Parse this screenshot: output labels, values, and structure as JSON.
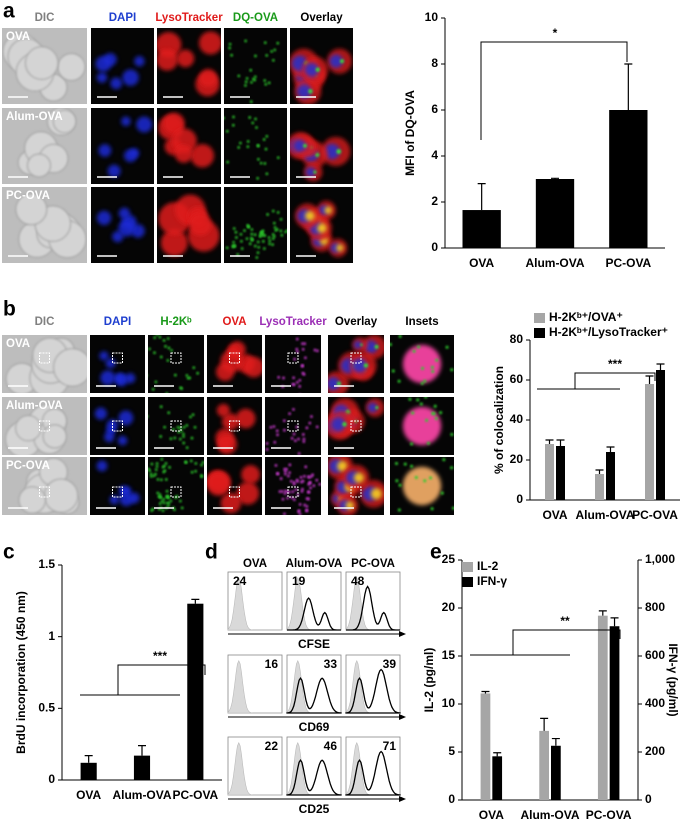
{
  "panel_labels": [
    "a",
    "b",
    "c",
    "d",
    "e"
  ],
  "image_panels": {
    "a": {
      "columns": [
        "DIC",
        "DAPI",
        "LysoTracker",
        "DQ-OVA",
        "Overlay"
      ],
      "rows": [
        "OVA",
        "Alum-OVA",
        "PC-OVA"
      ]
    },
    "b": {
      "columns": [
        "DIC",
        "DAPI",
        "H-2Kᵇ",
        "OVA",
        "LysoTracker",
        "Overlay",
        "Insets"
      ],
      "rows": [
        "OVA",
        "Alum-OVA",
        "PC-OVA"
      ]
    }
  },
  "flow_panel": {
    "columns": [
      "OVA",
      "Alum-OVA",
      "PC-OVA"
    ],
    "markers": [
      "CFSE",
      "CD69",
      "CD25"
    ],
    "values": [
      [
        24,
        19,
        48
      ],
      [
        16,
        33,
        39
      ],
      [
        22,
        46,
        71
      ]
    ]
  },
  "chart_data": [
    {
      "type": "bar",
      "ylabel": "MFI of DQ-OVA",
      "categories": [
        "OVA",
        "Alum-OVA",
        "PC-OVA"
      ],
      "values": [
        1.65,
        3.0,
        6.0
      ],
      "errors": [
        1.15,
        0.03,
        2.0
      ],
      "color": "#000000",
      "ylim": [
        0,
        10
      ],
      "yticks": [
        0,
        2,
        4,
        6,
        8,
        10
      ],
      "significance": "*"
    },
    {
      "type": "bar",
      "ylabel": "% of colocalization",
      "categories": [
        "OVA",
        "Alum-OVA",
        "PC-OVA"
      ],
      "series": [
        {
          "name": "H-2Kᵇ⁺/OVA⁺",
          "color": "#a6a6a6",
          "values": [
            28,
            13,
            58
          ],
          "errors": [
            2,
            2,
            4
          ]
        },
        {
          "name": "H-2Kᵇ⁺/LysoTracker⁺",
          "color": "#000000",
          "values": [
            27,
            24,
            65
          ],
          "errors": [
            3,
            2.5,
            3
          ]
        }
      ],
      "ylim": [
        0,
        80
      ],
      "yticks": [
        0,
        20,
        40,
        60,
        80
      ],
      "significance": "***"
    },
    {
      "type": "bar",
      "ylabel": "BrdU incorporation (450 nm)",
      "categories": [
        "OVA",
        "Alum-OVA",
        "PC-OVA"
      ],
      "values": [
        0.12,
        0.17,
        1.23
      ],
      "errors": [
        0.05,
        0.07,
        0.03
      ],
      "color": "#000000",
      "ylim": [
        0,
        1.5
      ],
      "yticks": [
        0,
        0.5,
        1,
        1.5
      ],
      "significance": "***"
    },
    {
      "type": "bar",
      "ylabel": "IL-2 (pg/ml)",
      "y2label": "IFN-γ (pg/ml)",
      "categories": [
        "OVA",
        "Alum-OVA",
        "PC-OVA"
      ],
      "series": [
        {
          "name": "IL-2",
          "color": "#a6a6a6",
          "values": [
            11.1,
            7.2,
            19.2
          ],
          "errors": [
            0.2,
            1.3,
            0.5
          ]
        },
        {
          "name": "IFN-γ",
          "color": "#000000",
          "axis": "y2",
          "values": [
            182,
            226,
            724
          ],
          "errors": [
            15,
            30,
            35
          ]
        }
      ],
      "ylim": [
        0,
        25
      ],
      "yticks": [
        0,
        5,
        10,
        15,
        20,
        25
      ],
      "y2lim": [
        0,
        1000
      ],
      "y2ticks": [
        0,
        200,
        400,
        600,
        800,
        {
          "value": 1000,
          "label": "1,000"
        }
      ],
      "significance": "**"
    }
  ]
}
